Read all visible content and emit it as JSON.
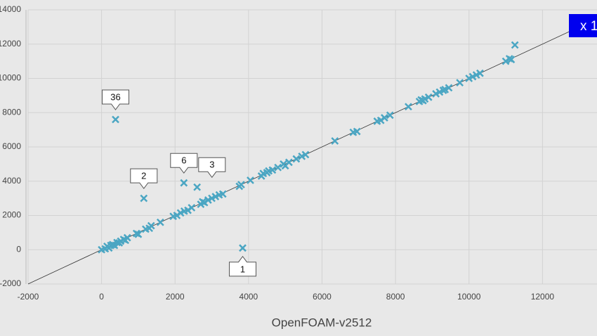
{
  "chart_data": {
    "type": "scatter",
    "xlabel": "OpenFOAM-v2512",
    "annotation": "x 1",
    "color": "#4ba6c3",
    "xlim": [
      -2000,
      14000
    ],
    "xticks": [
      -2000,
      0,
      2000,
      4000,
      6000,
      8000,
      10000,
      12000
    ],
    "ylim": [
      -2000,
      14000
    ],
    "yticks": [
      -2000,
      0,
      2000,
      4000,
      6000,
      8000,
      10000,
      12000,
      14000
    ],
    "grid": true,
    "x": [
      0,
      100,
      150,
      200,
      250,
      300,
      350,
      420,
      480,
      520,
      600,
      650,
      700,
      950,
      1000,
      1200,
      1300,
      1350,
      1600,
      1950,
      2050,
      2150,
      2250,
      2350,
      2450,
      2700,
      2750,
      2800,
      2900,
      3000,
      3100,
      3200,
      3300,
      3750,
      3800,
      4050,
      4350,
      4400,
      4500,
      4550,
      4650,
      4800,
      4950,
      5000,
      5100,
      5300,
      5450,
      5550,
      6350,
      6850,
      6950,
      7500,
      7600,
      7700,
      7850,
      8350,
      8650,
      8700,
      8750,
      8800,
      8900,
      9100,
      9200,
      9300,
      9350,
      9450,
      9750,
      10000,
      10100,
      10200,
      10300,
      11000,
      11100,
      11150,
      11250,
      380,
      1150,
      2240,
      2600,
      3840
    ],
    "values": [
      0,
      50,
      200,
      100,
      250,
      300,
      250,
      420,
      400,
      500,
      600,
      550,
      700,
      950,
      900,
      1200,
      1250,
      1400,
      1600,
      1950,
      2000,
      2150,
      2250,
      2300,
      2450,
      2650,
      2800,
      2750,
      2900,
      3000,
      3100,
      3200,
      3250,
      3700,
      3800,
      4050,
      4300,
      4450,
      4500,
      4600,
      4650,
      4800,
      5000,
      4900,
      5100,
      5300,
      5450,
      5550,
      6350,
      6850,
      6900,
      7500,
      7550,
      7700,
      7850,
      8350,
      8650,
      8750,
      8700,
      8800,
      8900,
      9100,
      9200,
      9300,
      9350,
      9450,
      9750,
      10000,
      10100,
      10200,
      10300,
      11000,
      11150,
      11100,
      11950,
      7600,
      3000,
      3900,
      3650,
      100
    ],
    "point_labels": [
      null,
      null,
      null,
      null,
      null,
      null,
      null,
      null,
      null,
      null,
      null,
      null,
      null,
      null,
      null,
      null,
      null,
      null,
      null,
      null,
      null,
      null,
      null,
      null,
      null,
      null,
      null,
      null,
      null,
      null,
      null,
      null,
      null,
      null,
      null,
      null,
      null,
      null,
      null,
      null,
      null,
      null,
      null,
      null,
      null,
      null,
      null,
      null,
      null,
      null,
      null,
      null,
      null,
      null,
      null,
      null,
      null,
      null,
      null,
      null,
      null,
      null,
      null,
      null,
      null,
      null,
      null,
      null,
      null,
      null,
      null,
      null,
      null,
      null,
      null,
      "36",
      "2",
      "6",
      "3",
      "1"
    ]
  }
}
